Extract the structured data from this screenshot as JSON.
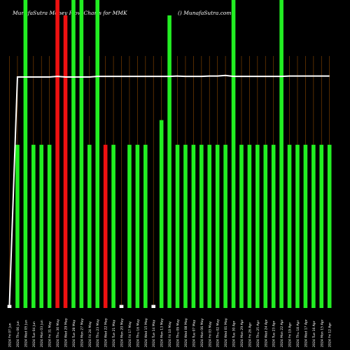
{
  "header": {
    "left_text": "MunafaSutra  Money Flow  Charts for MMK",
    "right_text": "() MunafaSutra.com"
  },
  "chart_data": {
    "type": "bar",
    "title": "MunafaSutra Money Flow Charts for MMK",
    "ylim": [
      0,
      100
    ],
    "grid": "vertical lines at each bar",
    "colors": {
      "up": "#22ee22",
      "down": "#ee1111",
      "flat": "#ffffff",
      "grid": "#7a3e00",
      "line": "#ffffff",
      "background": "#000000"
    },
    "categories": [
      "2024 Fri 07 Jun",
      "2024 Thu 06 Jun",
      "2024 Wed 05 Jun",
      "2024 Tue 04 Jun",
      "2024 Mon 03 Jun",
      "2024 Fri 31 May",
      "2024 Thu 30 May",
      "2024 Wed 29 May",
      "2024 Tue 28 May",
      "2024 Mon 27 May",
      "2024 Fri 24 May",
      "2024 Thu 23 May",
      "2024 Wed 22 May",
      "2024 Tue 21 May",
      "2024 Mon 20 May",
      "2024 Fri 17 May",
      "2024 Thu 16 May",
      "2024 Wed 15 May",
      "2024 Tue 14 May",
      "2024 Mon 13 May",
      "2024 Fri 10 May",
      "2024 Thu 09 May",
      "2024 Wed 08 May",
      "2024 Tue 07 May",
      "2024 Mon 06 May",
      "2024 Fri 03 May",
      "2024 Thu 02 May",
      "2024 Wed 01 May",
      "2024 Tue 30 Apr",
      "2024 Mon 29 Apr",
      "2024 Fri 26 Apr",
      "2024 Thu 25 Apr",
      "2024 Wed 24 Apr",
      "2024 Tue 23 Apr",
      "2024 Mon 22 Apr",
      "2024 Fri 19 Apr",
      "2024 Thu 18 Apr",
      "2024 Wed 17 Apr",
      "2024 Tue 16 Apr",
      "2024 Mon 15 Apr",
      "2024 Fri 12 Apr"
    ],
    "series": [
      {
        "values": [
          1,
          53,
          100,
          53,
          53,
          53,
          100,
          95,
          100,
          100,
          53,
          100,
          53,
          53,
          1,
          53,
          53,
          53,
          1,
          61,
          95,
          53,
          53,
          53,
          53,
          53,
          53,
          53,
          100,
          53,
          53,
          53,
          53,
          53,
          100,
          53,
          53,
          53,
          53,
          53,
          53
        ],
        "colors": [
          "flat",
          "up",
          "up",
          "up",
          "up",
          "up",
          "down",
          "down",
          "up",
          "up",
          "up",
          "up",
          "down",
          "up",
          "flat",
          "up",
          "up",
          "up",
          "flat",
          "up",
          "up",
          "up",
          "up",
          "up",
          "up",
          "up",
          "up",
          "up",
          "up",
          "up",
          "up",
          "up",
          "up",
          "up",
          "up",
          "up",
          "up",
          "up",
          "up",
          "up",
          "up"
        ]
      },
      {
        "type": "line",
        "values": [
          1,
          75,
          75,
          75,
          75,
          75,
          75.2,
          75,
          75,
          75,
          75,
          75.2,
          75.2,
          75.2,
          75.2,
          75.2,
          75.2,
          75.2,
          75.2,
          75.2,
          75.2,
          75.3,
          75.2,
          75.2,
          75.2,
          75.3,
          75.3,
          75.5,
          75.2,
          75.2,
          75.2,
          75.2,
          75.2,
          75.2,
          75.2,
          75.3,
          75.3,
          75.3,
          75.3,
          75.3,
          75.3
        ]
      }
    ]
  }
}
